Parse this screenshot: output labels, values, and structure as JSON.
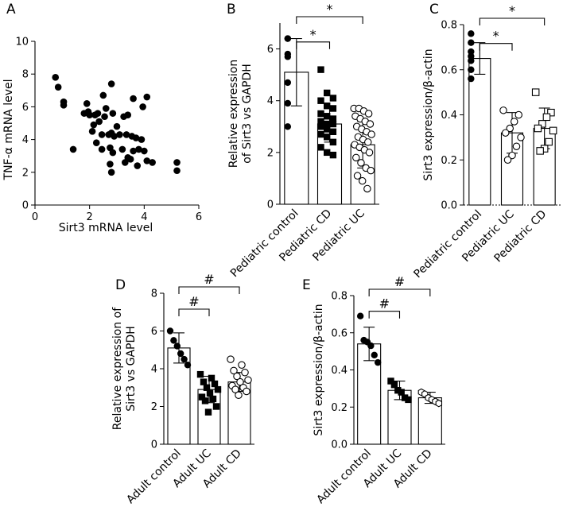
{
  "chart_data": [
    {
      "panel": "A",
      "type": "scatter",
      "xlabel": "Sirt3 mRNA level",
      "ylabel": "TNF-α mRNA level",
      "xlim": [
        0,
        6
      ],
      "ylim": [
        0,
        10
      ],
      "xticks": [
        0,
        2,
        4,
        6
      ],
      "yticks": [
        0,
        2,
        4,
        6,
        8,
        10
      ],
      "points": [
        [
          0.75,
          7.8
        ],
        [
          0.85,
          7.2
        ],
        [
          1.05,
          6.3
        ],
        [
          1.05,
          6.1
        ],
        [
          1.4,
          3.4
        ],
        [
          1.8,
          5.6
        ],
        [
          1.9,
          6.2
        ],
        [
          1.95,
          5.7
        ],
        [
          2.0,
          5.5
        ],
        [
          2.1,
          4.5
        ],
        [
          2.15,
          4.9
        ],
        [
          2.2,
          5.5
        ],
        [
          2.25,
          3.8
        ],
        [
          2.3,
          5.6
        ],
        [
          2.35,
          5.1
        ],
        [
          2.45,
          4.3
        ],
        [
          2.45,
          3.4
        ],
        [
          2.5,
          6.7
        ],
        [
          2.55,
          5.4
        ],
        [
          2.6,
          5.9
        ],
        [
          2.7,
          4.3
        ],
        [
          2.75,
          3.5
        ],
        [
          2.75,
          2.5
        ],
        [
          2.8,
          4.4
        ],
        [
          2.8,
          2.0
        ],
        [
          2.8,
          7.4
        ],
        [
          2.85,
          5.6
        ],
        [
          2.85,
          3.2
        ],
        [
          2.9,
          4.2
        ],
        [
          3.0,
          4.8
        ],
        [
          3.1,
          4.3
        ],
        [
          3.2,
          3.4
        ],
        [
          3.25,
          5.4
        ],
        [
          3.3,
          2.6
        ],
        [
          3.35,
          4.3
        ],
        [
          3.4,
          5.5
        ],
        [
          3.4,
          2.9
        ],
        [
          3.5,
          2.8
        ],
        [
          3.55,
          4.2
        ],
        [
          3.6,
          6.5
        ],
        [
          3.6,
          3.3
        ],
        [
          3.7,
          4.1
        ],
        [
          3.75,
          2.4
        ],
        [
          3.8,
          3.4
        ],
        [
          3.9,
          4.0
        ],
        [
          3.95,
          6.0
        ],
        [
          4.0,
          3.3
        ],
        [
          4.1,
          2.7
        ],
        [
          4.1,
          6.6
        ],
        [
          4.3,
          2.6
        ],
        [
          5.2,
          2.6
        ],
        [
          5.2,
          2.1
        ]
      ]
    },
    {
      "panel": "B",
      "type": "bar",
      "ylabel": "Relative expression of Sirt3 vs GAPDH",
      "ylim": [
        0,
        7
      ],
      "yticks": [
        0,
        2,
        4,
        6
      ],
      "categories": [
        "Pediatric control",
        "Pediatric CD",
        "Pediatric UC"
      ],
      "means": [
        5.1,
        3.1,
        2.3
      ],
      "sd": [
        1.3,
        0.7,
        0.9
      ],
      "markers": [
        "filled-circle",
        "filled-square",
        "open-circle"
      ],
      "points": [
        [
          6.4,
          6.4,
          5.8,
          5.7,
          4.7,
          3.9,
          3.0
        ],
        [
          5.2,
          4.3,
          4.1,
          4.0,
          3.8,
          3.7,
          3.5,
          3.4,
          3.3,
          3.2,
          3.1,
          3.1,
          3.0,
          2.9,
          2.8,
          2.7,
          2.6,
          2.4,
          2.2,
          2.0,
          1.9
        ],
        [
          3.7,
          3.7,
          3.6,
          3.5,
          3.4,
          3.3,
          3.2,
          3.1,
          3.0,
          2.9,
          2.8,
          2.7,
          2.6,
          2.5,
          2.4,
          2.3,
          2.2,
          2.1,
          2.0,
          1.8,
          1.6,
          1.4,
          1.3,
          1.1,
          0.9,
          0.6
        ]
      ],
      "significance": [
        {
          "from": 0,
          "to": 1,
          "label": "*"
        },
        {
          "from": 0,
          "to": 2,
          "label": "*"
        }
      ]
    },
    {
      "panel": "C",
      "type": "bar",
      "ylabel": "Sirt3 expression/β-actin",
      "ylim": [
        0,
        0.8
      ],
      "yticks": [
        "0.0",
        "0.2",
        "0.4",
        "0.6",
        "0.8"
      ],
      "categories": [
        "Pediatric control",
        "Pediatric UC",
        "Pediatric CD"
      ],
      "means": [
        0.65,
        0.32,
        0.34
      ],
      "sd": [
        0.07,
        0.09,
        0.09
      ],
      "markers": [
        "filled-circle",
        "open-circle",
        "open-square"
      ],
      "points": [
        [
          0.76,
          0.72,
          0.68,
          0.66,
          0.64,
          0.6,
          0.56
        ],
        [
          0.42,
          0.4,
          0.37,
          0.34,
          0.32,
          0.3,
          0.26,
          0.22,
          0.2
        ],
        [
          0.5,
          0.41,
          0.39,
          0.36,
          0.34,
          0.33,
          0.28,
          0.25,
          0.24
        ]
      ],
      "significance": [
        {
          "from": 0,
          "to": 1,
          "label": "*"
        },
        {
          "from": 0,
          "to": 2,
          "label": "*"
        }
      ]
    },
    {
      "panel": "D",
      "type": "bar",
      "ylabel": "Relative expression of Sirt3 vs GAPDH",
      "ylim": [
        0,
        8
      ],
      "yticks": [
        0,
        2,
        4,
        6,
        8
      ],
      "categories": [
        "Adult control",
        "Adult UC",
        "Adult CD"
      ],
      "means": [
        5.1,
        2.9,
        3.3
      ],
      "sd": [
        0.8,
        0.7,
        0.5
      ],
      "markers": [
        "filled-circle",
        "filled-square",
        "open-circle"
      ],
      "points": [
        [
          6.0,
          5.5,
          5.2,
          4.8,
          4.5,
          4.2
        ],
        [
          3.7,
          3.5,
          3.3,
          3.2,
          3.0,
          2.9,
          2.7,
          2.5,
          2.4,
          2.3,
          2.0,
          1.7
        ],
        [
          4.5,
          4.2,
          3.9,
          3.8,
          3.6,
          3.4,
          3.3,
          3.1,
          3.0,
          2.9,
          2.8,
          2.6
        ]
      ],
      "significance": [
        {
          "from": 0,
          "to": 1,
          "label": "#"
        },
        {
          "from": 0,
          "to": 2,
          "label": "#"
        }
      ]
    },
    {
      "panel": "E",
      "type": "bar",
      "ylabel": "Sirt3 expression/β-actin",
      "ylim": [
        0,
        0.8
      ],
      "yticks": [
        "0.0",
        "0.2",
        "0.4",
        "0.6",
        "0.8"
      ],
      "categories": [
        "Adult control",
        "Adult UC",
        "Adult CD"
      ],
      "means": [
        0.54,
        0.29,
        0.25
      ],
      "sd": [
        0.09,
        0.05,
        0.03
      ],
      "markers": [
        "filled-circle",
        "filled-square",
        "open-hexagon"
      ],
      "points": [
        [
          0.69,
          0.56,
          0.55,
          0.53,
          0.48,
          0.44
        ],
        [
          0.34,
          0.32,
          0.29,
          0.28,
          0.25,
          0.24
        ],
        [
          0.28,
          0.27,
          0.25,
          0.24,
          0.23,
          0.22
        ]
      ],
      "significance": [
        {
          "from": 0,
          "to": 1,
          "label": "#"
        },
        {
          "from": 0,
          "to": 2,
          "label": "#"
        }
      ]
    }
  ]
}
